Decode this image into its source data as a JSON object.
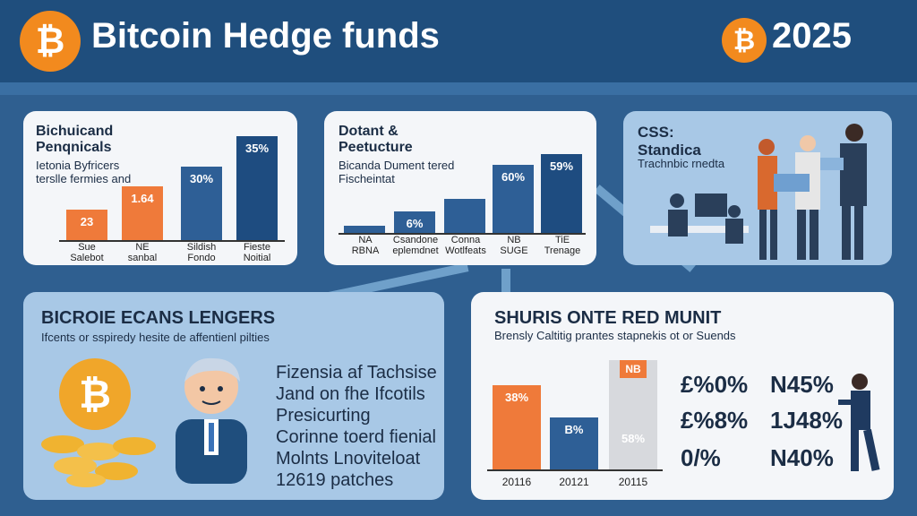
{
  "header": {
    "title": "Bitcoin Hedge funds",
    "year": "2025",
    "coin_symbol": "₿"
  },
  "card1": {
    "title": "Bichuicand\nPenqnicals",
    "subtitle": "Ietonia Byfricers\nterslle fermies and",
    "bars": [
      {
        "label": "23",
        "color": "orange"
      },
      {
        "label": "1.64",
        "color": "orange"
      },
      {
        "label": "30%",
        "color": "blue"
      },
      {
        "label": "35%",
        "color": "dblue"
      }
    ],
    "xlabels": [
      "Sue\nSalebot",
      "NE\nsanbal",
      "Sildish\nFondo",
      "Fieste\nNoitial"
    ]
  },
  "card2": {
    "title": "Dotant &\nPeetucture",
    "subtitle": "Bicanda Dument tered\nFischeintat",
    "bars": [
      {
        "label": "",
        "color": "blue"
      },
      {
        "label": "6%",
        "color": "blue"
      },
      {
        "label": "",
        "color": "blue"
      },
      {
        "label": "60%",
        "color": "blue"
      },
      {
        "label": "59%",
        "color": "dblue"
      }
    ],
    "xlabels": [
      "NA\nRBNA",
      "Csandone\neplemdnet",
      "Conna\nWotlfeats",
      "NB\nSUGE",
      "TiE\nTrenage"
    ]
  },
  "card3": {
    "title": "CSS:\nStandica",
    "subtitle": "Trachnbic rnedta"
  },
  "card4": {
    "title": "BICROIE ECANS LENGERS",
    "subtitle": "Ifcents or sspiredy hesite de affentienl pilties",
    "lines": [
      "Fizensia af Tachsise",
      "Jand on fhe Ifcotils",
      "Presicurting",
      "Corinne toerd fienial",
      "Molnts Lnoviteloat",
      "12619 patches"
    ]
  },
  "card5": {
    "title": "SHURIS ONTE RED MUNIT",
    "subtitle": "Brensly Caltitig prantes stapnekis ot or Suends",
    "bars": [
      {
        "label": "38%",
        "color": "orange"
      },
      {
        "label": "B%",
        "color": "blue"
      },
      {
        "label": "58%",
        "color": "grey",
        "top_label": "NB"
      }
    ],
    "xlabels": [
      "20116",
      "20121",
      "20115"
    ],
    "stats": [
      "£%0%",
      "N45%",
      "£%8%",
      "1J48%",
      "0/%",
      "N40%"
    ]
  },
  "colors": {
    "header_bg": "#1f4e7d",
    "page_bg": "#2f5f90",
    "orange": "#ef7a3a",
    "blue": "#2e5f96",
    "coin": "#f28a1e"
  }
}
